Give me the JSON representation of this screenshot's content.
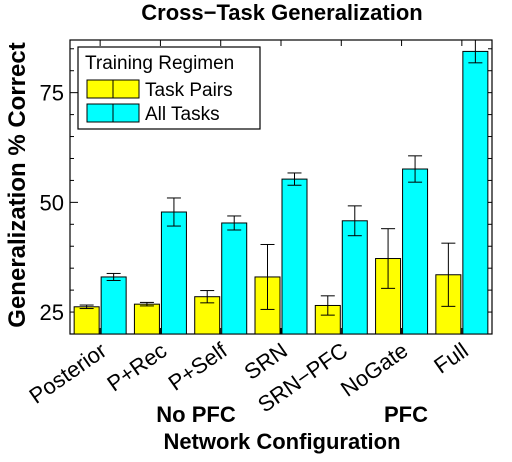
{
  "chart_data": {
    "type": "bar",
    "title": "Cross−Task Generalization",
    "ylabel": "Generalization % Correct",
    "xlabel": "Network Configuration",
    "ylim": [
      20,
      87
    ],
    "yticks": [
      25,
      50,
      75
    ],
    "categories": [
      "Posterior",
      "P+Rec",
      "P+Self",
      "SRN",
      "SRN−PFC",
      "NoGate",
      "Full"
    ],
    "category_groups": [
      {
        "label": "No PFC",
        "categories": [
          "Posterior",
          "P+Rec",
          "P+Self",
          "SRN"
        ]
      },
      {
        "label": "PFC",
        "categories": [
          "SRN−PFC",
          "NoGate",
          "Full"
        ]
      }
    ],
    "legend": {
      "title": "Training Regimen",
      "placement": "top-left"
    },
    "series": [
      {
        "name": "Task Pairs",
        "color": "#ffff00",
        "values": [
          26.2,
          26.8,
          28.5,
          33.0,
          26.5,
          37.2,
          33.5
        ],
        "errors": [
          0.4,
          0.4,
          1.4,
          7.4,
          2.2,
          6.8,
          7.2
        ]
      },
      {
        "name": "All Tasks",
        "color": "#00ffff",
        "values": [
          33.0,
          47.8,
          45.3,
          55.3,
          45.8,
          57.6,
          84.4
        ],
        "errors": [
          0.8,
          3.2,
          1.6,
          1.4,
          3.4,
          3.0,
          2.6
        ]
      }
    ],
    "grid": false
  }
}
